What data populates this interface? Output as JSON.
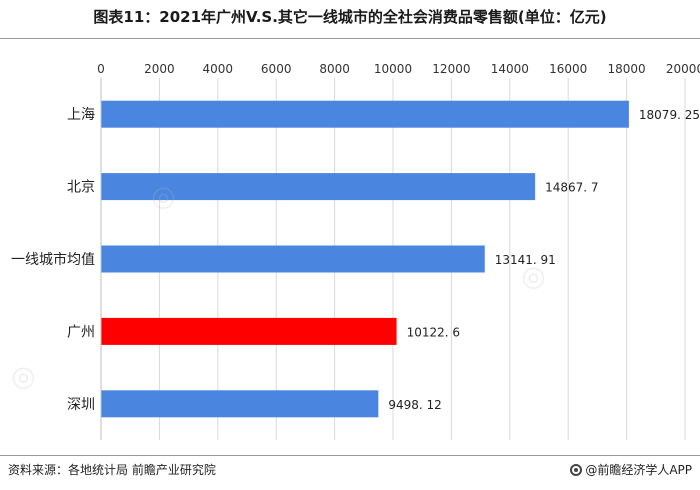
{
  "title": "图表11：2021年广州V.S.其它一线城市的全社会消费品零售额(单位：亿元)",
  "source": "资料来源：各地统计局 前瞻产业研究院",
  "brand": "@前瞻经济学人APP",
  "colors": {
    "bar_default": "#4a86e0",
    "bar_highlight": "#ff0000",
    "grid": "#d9d9d9"
  },
  "chart_data": {
    "type": "bar",
    "orientation": "horizontal",
    "title": "图表11：2021年广州V.S.其它一线城市的全社会消费品零售额(单位：亿元)",
    "xlabel": "",
    "ylabel": "",
    "xlim": [
      0,
      20000
    ],
    "x_ticks": [
      0,
      2000,
      4000,
      6000,
      8000,
      10000,
      12000,
      14000,
      16000,
      18000,
      20000
    ],
    "x_axis_position": "top",
    "grid": true,
    "categories": [
      "上海",
      "北京",
      "一线城市均值",
      "广州",
      "深圳"
    ],
    "values": [
      18079.25,
      14867.7,
      13141.91,
      10122.6,
      9498.12
    ],
    "value_labels": [
      "18079. 25",
      "14867. 7",
      "13141. 91",
      "10122. 6",
      "9498. 12"
    ],
    "highlight_category": "广州"
  }
}
